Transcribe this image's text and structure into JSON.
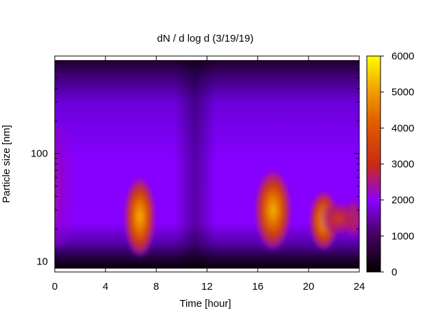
{
  "chart_data": {
    "type": "heatmap",
    "title": "dN / d log d (3/19/19)",
    "xlabel": "Time [hour]",
    "ylabel": "Particle size [nm]",
    "xlim": [
      0,
      24
    ],
    "x_ticks": [
      0,
      4,
      8,
      12,
      16,
      20,
      24
    ],
    "ylim": [
      8,
      800
    ],
    "y_scale": "log",
    "y_ticks": [
      10,
      100
    ],
    "grid": false,
    "colormap": [
      "#000000",
      "#5a007f",
      "#8a00ff",
      "#d22d00",
      "#f09a00",
      "#ffff00"
    ],
    "colorbar": {
      "range": [
        0,
        6000
      ],
      "ticks": [
        0,
        1000,
        2000,
        3000,
        4000,
        5000,
        6000
      ]
    },
    "features": [
      {
        "x_hour": 0.0,
        "size_nm": 50,
        "peak": 3000,
        "note": "elevated concentration at start of day"
      },
      {
        "x_hour": 6.7,
        "size_nm": 26,
        "peak": 5000
      },
      {
        "x_hour": 17.2,
        "size_nm": 30,
        "peak": 5200
      },
      {
        "x_hour": 21.2,
        "size_nm": 24,
        "peak": 4800
      },
      {
        "x_hour": 23.5,
        "size_nm": 25,
        "peak": 3500
      }
    ]
  }
}
